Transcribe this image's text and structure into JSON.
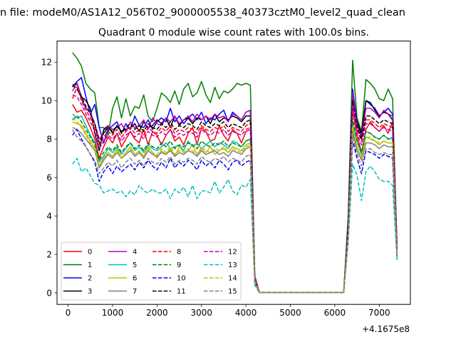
{
  "figure": {
    "suptitle": "n file: modeM0/AS1A12_056T02_9000005538_40373cztM0_level2_quad_clean",
    "title": "Quadrant 0 module wise count rates with 100.0s bins."
  },
  "chart_data": {
    "type": "line",
    "title": "Quadrant 0 module wise count rates with 100.0s bins.",
    "xlabel": "",
    "ylabel": "",
    "x_offset_label": "+4.1675e8",
    "xlim": [
      -250,
      7700
    ],
    "ylim": [
      -0.6,
      13.1
    ],
    "x_ticks": [
      0,
      1000,
      2000,
      3000,
      4000,
      5000,
      6000,
      7000
    ],
    "y_ticks": [
      0,
      2,
      4,
      6,
      8,
      10,
      12
    ],
    "grid": false,
    "legend_position": "lower-left",
    "legend_columns": 4,
    "x": [
      100,
      200,
      300,
      400,
      500,
      600,
      700,
      800,
      900,
      1000,
      1100,
      1200,
      1300,
      1400,
      1500,
      1600,
      1700,
      1800,
      1900,
      2000,
      2100,
      2200,
      2300,
      2400,
      2500,
      2600,
      2700,
      2800,
      2900,
      3000,
      3100,
      3200,
      3300,
      3400,
      3500,
      3600,
      3700,
      3800,
      3900,
      4000,
      4100,
      4200,
      4300,
      4400,
      6200,
      6300,
      6400,
      6500,
      6600,
      6700,
      6800,
      6900,
      7000,
      7100,
      7200,
      7300,
      7400
    ],
    "series": [
      {
        "name": "0",
        "color": "#ff0000",
        "dash": "solid",
        "values": [
          9.8,
          9.4,
          9.5,
          9.1,
          8.6,
          8.0,
          7.0,
          7.6,
          8.1,
          7.8,
          8.3,
          7.6,
          8.0,
          8.4,
          8.0,
          7.8,
          8.5,
          7.7,
          8.4,
          8.2,
          7.7,
          8.2,
          8.5,
          7.9,
          8.1,
          7.7,
          8.3,
          8.6,
          7.7,
          8.6,
          8.4,
          7.9,
          8.0,
          8.7,
          8.2,
          7.9,
          8.5,
          8.3,
          7.8,
          8.4,
          8.5,
          0.8,
          0.02,
          0.02,
          0.02,
          3.5,
          9.5,
          8.2,
          7.3,
          8.5,
          8.9,
          8.6,
          8.4,
          8.7,
          8.3,
          8.9,
          2.5
        ]
      },
      {
        "name": "1",
        "color": "#008000",
        "dash": "solid",
        "values": [
          12.5,
          12.2,
          11.8,
          10.9,
          10.6,
          10.4,
          8.6,
          8.6,
          8.2,
          9.6,
          10.2,
          9.1,
          10.1,
          9.2,
          9.7,
          9.6,
          10.3,
          9.2,
          8.9,
          9.6,
          10.4,
          10.2,
          9.9,
          10.5,
          9.8,
          10.6,
          10.9,
          10.2,
          10.4,
          11.0,
          10.3,
          9.9,
          10.7,
          10.1,
          10.5,
          10.4,
          10.6,
          10.9,
          10.8,
          10.9,
          10.8,
          0.9,
          0.03,
          0.03,
          0.03,
          4.0,
          12.1,
          9.1,
          8.4,
          11.1,
          10.9,
          10.6,
          10.1,
          10.0,
          10.6,
          10.1,
          2.3
        ]
      },
      {
        "name": "2",
        "color": "#0000ff",
        "dash": "solid",
        "values": [
          10.7,
          11.0,
          11.2,
          10.2,
          9.3,
          9.8,
          8.6,
          7.8,
          8.5,
          8.7,
          8.9,
          8.3,
          8.8,
          8.5,
          9.2,
          8.7,
          8.6,
          9.0,
          8.5,
          8.9,
          9.1,
          8.9,
          9.6,
          8.9,
          9.2,
          8.8,
          9.1,
          9.3,
          9.0,
          9.4,
          8.8,
          9.1,
          9.0,
          9.3,
          9.5,
          8.9,
          9.4,
          9.2,
          9.0,
          9.4,
          9.5,
          0.7,
          0.02,
          0.02,
          0.02,
          3.7,
          10.6,
          8.9,
          8.1,
          10.0,
          9.8,
          9.6,
          9.2,
          9.4,
          9.6,
          9.3,
          2.0
        ]
      },
      {
        "name": "3",
        "color": "#000000",
        "dash": "solid",
        "values": [
          10.8,
          10.9,
          10.2,
          10.0,
          9.6,
          8.3,
          7.4,
          8.5,
          8.7,
          8.3,
          8.7,
          8.4,
          8.5,
          8.6,
          8.8,
          8.4,
          8.9,
          8.6,
          8.7,
          9.0,
          8.8,
          9.1,
          8.6,
          9.2,
          8.7,
          9.0,
          9.1,
          8.8,
          9.1,
          9.0,
          9.2,
          8.8,
          9.3,
          8.9,
          9.1,
          9.0,
          9.2,
          9.1,
          8.9,
          9.2,
          9.2,
          0.7,
          0.02,
          0.02,
          0.02,
          3.6,
          10.1,
          8.9,
          8.3,
          10.0,
          9.9,
          9.5,
          9.2,
          9.4,
          9.3,
          9.0,
          2.4
        ]
      },
      {
        "name": "4",
        "color": "#bf00bf",
        "dash": "solid",
        "values": [
          10.5,
          10.9,
          10.1,
          9.6,
          9.4,
          8.8,
          8.0,
          8.3,
          8.7,
          8.5,
          8.6,
          8.8,
          8.4,
          8.9,
          8.6,
          8.7,
          9.0,
          8.5,
          9.1,
          8.8,
          8.7,
          9.1,
          8.9,
          9.2,
          8.8,
          9.0,
          9.2,
          8.9,
          9.3,
          9.0,
          9.2,
          9.0,
          9.3,
          9.1,
          9.2,
          8.9,
          9.3,
          9.2,
          9.0,
          9.4,
          9.5,
          0.8,
          0.02,
          0.02,
          0.02,
          3.4,
          10.4,
          8.7,
          8.1,
          9.6,
          9.6,
          9.4,
          9.1,
          9.5,
          9.3,
          9.2,
          2.3
        ]
      },
      {
        "name": "5",
        "color": "#00bfbf",
        "dash": "solid",
        "values": [
          9.3,
          9.1,
          9.2,
          8.7,
          8.2,
          7.8,
          6.8,
          7.1,
          7.5,
          7.3,
          7.6,
          7.2,
          7.5,
          7.8,
          7.4,
          7.6,
          7.3,
          7.7,
          7.5,
          7.4,
          7.6,
          7.8,
          7.5,
          7.6,
          7.7,
          7.4,
          7.9,
          7.6,
          7.8,
          7.5,
          7.7,
          7.9,
          7.6,
          7.8,
          7.7,
          7.5,
          7.9,
          7.8,
          7.6,
          7.9,
          8.0,
          0.6,
          0.02,
          0.02,
          0.02,
          3.2,
          8.8,
          7.9,
          7.2,
          8.4,
          8.3,
          8.1,
          8.0,
          8.2,
          8.0,
          8.1,
          2.0
        ]
      },
      {
        "name": "6",
        "color": "#bfbf00",
        "dash": "solid",
        "values": [
          8.9,
          8.8,
          8.7,
          8.3,
          7.9,
          7.5,
          6.6,
          7.0,
          7.3,
          7.1,
          7.5,
          7.0,
          7.3,
          7.6,
          7.2,
          7.4,
          7.1,
          7.6,
          7.3,
          7.0,
          7.4,
          7.2,
          7.5,
          7.1,
          7.6,
          7.3,
          7.4,
          7.7,
          7.2,
          7.5,
          7.3,
          7.6,
          7.2,
          7.4,
          7.5,
          7.3,
          7.6,
          7.5,
          7.4,
          7.7,
          7.8,
          0.6,
          0.02,
          0.02,
          0.02,
          3.1,
          8.6,
          7.6,
          7.0,
          8.1,
          8.0,
          7.9,
          7.7,
          7.9,
          7.8,
          7.8,
          2.1
        ]
      },
      {
        "name": "7",
        "color": "#808080",
        "dash": "solid",
        "values": [
          8.6,
          8.5,
          8.3,
          8.0,
          7.7,
          7.4,
          6.5,
          6.9,
          7.2,
          7.0,
          7.3,
          7.0,
          7.2,
          7.4,
          7.1,
          7.3,
          7.0,
          7.4,
          7.2,
          7.1,
          7.3,
          7.2,
          7.4,
          7.1,
          7.3,
          7.2,
          7.4,
          7.3,
          7.1,
          7.4,
          7.2,
          7.3,
          7.4,
          7.2,
          7.3,
          7.1,
          7.4,
          7.3,
          7.2,
          7.5,
          7.6,
          0.6,
          0.02,
          0.02,
          0.02,
          3.0,
          8.4,
          7.4,
          6.9,
          7.8,
          7.8,
          7.7,
          7.5,
          7.7,
          7.6,
          7.6,
          2.0
        ]
      },
      {
        "name": "8",
        "color": "#ff0000",
        "dash": "dashed",
        "values": [
          10.1,
          10.7,
          10.0,
          9.5,
          9.1,
          8.6,
          7.7,
          8.1,
          8.4,
          8.2,
          8.5,
          8.1,
          8.4,
          8.6,
          8.3,
          8.5,
          8.2,
          8.6,
          8.4,
          8.3,
          8.6,
          8.4,
          8.7,
          8.3,
          8.5,
          8.4,
          8.6,
          8.5,
          8.3,
          8.7,
          8.5,
          8.4,
          8.6,
          8.5,
          8.7,
          8.4,
          8.6,
          8.5,
          8.4,
          8.7,
          8.8,
          0.7,
          0.02,
          0.02,
          0.02,
          3.3,
          9.9,
          8.5,
          7.9,
          9.0,
          9.0,
          8.8,
          8.6,
          8.8,
          8.7,
          8.6,
          2.2
        ]
      },
      {
        "name": "9",
        "color": "#008000",
        "dash": "dashed",
        "values": [
          9.0,
          9.2,
          8.9,
          8.5,
          8.1,
          7.7,
          6.9,
          7.3,
          7.6,
          7.4,
          7.7,
          7.3,
          7.6,
          7.8,
          7.5,
          7.7,
          7.4,
          7.8,
          7.6,
          7.5,
          7.8,
          7.6,
          7.9,
          7.5,
          7.7,
          7.6,
          7.8,
          7.7,
          7.5,
          7.9,
          7.7,
          7.6,
          7.8,
          7.7,
          7.9,
          7.6,
          7.8,
          7.7,
          7.6,
          7.9,
          8.0,
          0.6,
          0.02,
          0.02,
          0.02,
          3.1,
          9.1,
          7.9,
          7.3,
          8.4,
          8.3,
          8.1,
          8.0,
          8.2,
          8.0,
          8.0,
          2.1
        ]
      },
      {
        "name": "10",
        "color": "#0000ff",
        "dash": "dashed",
        "values": [
          8.2,
          8.5,
          8.0,
          7.6,
          7.2,
          6.8,
          5.8,
          6.3,
          6.6,
          6.2,
          6.6,
          6.3,
          6.5,
          6.7,
          6.4,
          6.8,
          6.5,
          6.9,
          6.6,
          6.4,
          6.8,
          6.5,
          7.0,
          6.5,
          6.8,
          6.6,
          6.9,
          6.7,
          6.4,
          6.9,
          6.6,
          6.8,
          6.5,
          6.9,
          6.7,
          6.4,
          6.8,
          6.9,
          6.6,
          6.8,
          6.9,
          0.5,
          0.02,
          0.02,
          0.02,
          2.9,
          7.9,
          7.0,
          6.2,
          7.4,
          7.3,
          7.2,
          7.0,
          7.2,
          7.1,
          7.0,
          1.8
        ]
      },
      {
        "name": "11",
        "color": "#000000",
        "dash": "dashed",
        "values": [
          10.8,
          10.6,
          10.2,
          9.7,
          9.3,
          8.8,
          7.8,
          8.3,
          8.6,
          8.4,
          8.7,
          8.3,
          8.6,
          8.8,
          8.5,
          8.7,
          8.4,
          8.8,
          8.6,
          8.5,
          8.8,
          8.6,
          8.9,
          8.5,
          8.7,
          8.6,
          8.8,
          8.7,
          8.5,
          8.9,
          8.7,
          8.6,
          8.8,
          8.7,
          8.9,
          8.6,
          8.8,
          8.7,
          8.6,
          8.9,
          9.0,
          0.7,
          0.02,
          0.02,
          0.02,
          3.4,
          10.0,
          8.6,
          8.0,
          9.2,
          9.2,
          9.0,
          8.8,
          9.0,
          8.9,
          8.8,
          2.3
        ]
      },
      {
        "name": "12",
        "color": "#bf00bf",
        "dash": "dashed",
        "values": [
          10.3,
          10.2,
          9.8,
          9.3,
          8.9,
          8.4,
          7.5,
          7.9,
          8.2,
          8.0,
          8.3,
          7.9,
          8.2,
          8.4,
          8.1,
          8.3,
          8.0,
          8.4,
          8.2,
          8.1,
          8.4,
          8.2,
          8.5,
          8.1,
          8.3,
          8.2,
          8.4,
          8.3,
          8.1,
          8.5,
          8.3,
          8.2,
          8.4,
          8.3,
          8.5,
          8.2,
          8.4,
          8.3,
          8.2,
          8.5,
          8.6,
          0.7,
          0.02,
          0.02,
          0.02,
          3.3,
          9.7,
          8.3,
          7.7,
          8.8,
          8.8,
          8.6,
          8.4,
          8.6,
          8.5,
          8.4,
          2.2
        ]
      },
      {
        "name": "13",
        "color": "#00bfbf",
        "dash": "dashed",
        "values": [
          6.7,
          7.0,
          6.3,
          6.5,
          6.1,
          5.7,
          5.6,
          5.2,
          5.3,
          5.4,
          5.2,
          5.3,
          5.0,
          5.3,
          5.1,
          5.6,
          5.3,
          5.2,
          5.4,
          5.2,
          5.2,
          5.4,
          4.9,
          5.4,
          5.2,
          5.5,
          5.0,
          5.6,
          4.9,
          5.3,
          5.3,
          5.2,
          5.8,
          5.2,
          5.5,
          5.9,
          5.3,
          5.1,
          5.6,
          5.5,
          5.9,
          0.4,
          0.02,
          0.02,
          0.02,
          2.6,
          6.7,
          6.1,
          4.8,
          6.3,
          6.6,
          6.3,
          5.9,
          5.8,
          5.8,
          5.6,
          1.7
        ]
      },
      {
        "name": "14",
        "color": "#bfbf00",
        "dash": "dashed",
        "values": [
          9.1,
          8.9,
          8.6,
          8.2,
          7.8,
          7.4,
          6.6,
          7.0,
          7.3,
          7.1,
          7.4,
          7.0,
          7.3,
          7.5,
          7.2,
          7.4,
          7.1,
          7.5,
          7.3,
          7.2,
          7.5,
          7.3,
          7.6,
          7.2,
          7.4,
          7.3,
          7.5,
          7.4,
          7.2,
          7.6,
          7.4,
          7.3,
          7.5,
          7.4,
          7.6,
          7.3,
          7.5,
          7.4,
          7.3,
          7.6,
          7.7,
          0.6,
          0.02,
          0.02,
          0.02,
          3.0,
          8.7,
          7.6,
          7.0,
          8.1,
          8.1,
          7.9,
          7.8,
          7.9,
          7.8,
          7.8,
          2.0
        ]
      },
      {
        "name": "15",
        "color": "#808080",
        "dash": "dashed",
        "values": [
          8.5,
          8.1,
          7.9,
          7.6,
          7.2,
          6.9,
          6.2,
          6.5,
          6.8,
          6.6,
          6.9,
          6.5,
          6.8,
          7.0,
          6.7,
          6.9,
          6.6,
          7.0,
          6.8,
          6.7,
          7.0,
          6.8,
          7.1,
          6.7,
          6.9,
          6.8,
          7.0,
          6.9,
          6.7,
          7.1,
          6.9,
          6.8,
          7.0,
          6.9,
          7.1,
          6.8,
          7.0,
          6.9,
          6.8,
          7.1,
          7.2,
          0.5,
          0.02,
          0.02,
          0.02,
          2.8,
          8.2,
          7.2,
          6.6,
          7.5,
          7.5,
          7.3,
          7.2,
          7.3,
          7.2,
          7.2,
          1.9
        ]
      }
    ]
  }
}
